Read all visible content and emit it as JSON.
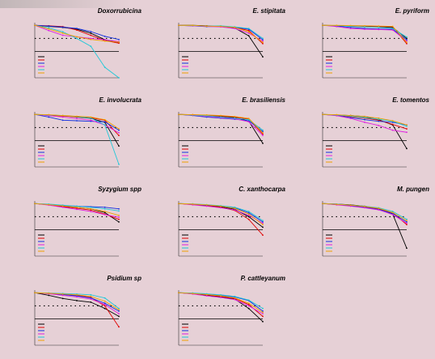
{
  "chart_data": [
    {
      "type": "line",
      "title": "Doxorrubicina",
      "x": [
        1,
        2,
        3,
        4,
        5,
        6,
        7
      ],
      "xlim": [
        1,
        7
      ],
      "ylim": [
        -100,
        110
      ],
      "ref_lines": [
        {
          "value": 50,
          "style": "dotted"
        },
        {
          "value": 0,
          "style": "solid"
        }
      ],
      "series": [
        {
          "color": "#000000",
          "values": [
            100,
            96,
            92,
            85,
            70,
            45,
            35
          ]
        },
        {
          "color": "#e00000",
          "values": [
            100,
            98,
            95,
            82,
            62,
            42,
            32
          ]
        },
        {
          "color": "#1030e0",
          "values": [
            100,
            97,
            93,
            88,
            76,
            58,
            46
          ]
        },
        {
          "color": "#e020e0",
          "values": [
            100,
            80,
            62,
            56,
            50,
            45,
            38
          ]
        },
        {
          "color": "#20c8d8",
          "values": [
            100,
            90,
            75,
            50,
            20,
            -60,
            -100
          ]
        },
        {
          "color": "#f0a000",
          "values": [
            100,
            86,
            70,
            56,
            46,
            40,
            36
          ]
        }
      ]
    },
    {
      "type": "line",
      "title": "E. stipitata",
      "x": [
        1,
        2,
        3,
        4,
        5,
        6,
        7
      ],
      "xlim": [
        1,
        7
      ],
      "ylim": [
        -100,
        110
      ],
      "ref_lines": [
        {
          "value": 50,
          "style": "dotted"
        },
        {
          "value": 0,
          "style": "solid"
        }
      ],
      "series": [
        {
          "color": "#000000",
          "values": [
            100,
            100,
            98,
            95,
            90,
            60,
            -20
          ]
        },
        {
          "color": "#e00000",
          "values": [
            100,
            99,
            97,
            95,
            92,
            80,
            30
          ]
        },
        {
          "color": "#1030e0",
          "values": [
            100,
            98,
            95,
            96,
            93,
            85,
            45
          ]
        },
        {
          "color": "#e020e0",
          "values": [
            100,
            98,
            96,
            94,
            88,
            70,
            40
          ]
        },
        {
          "color": "#20c8d8",
          "values": [
            100,
            99,
            97,
            98,
            94,
            88,
            50
          ]
        },
        {
          "color": "#f0a000",
          "values": [
            100,
            100,
            97,
            96,
            92,
            75,
            35
          ]
        }
      ]
    },
    {
      "type": "line",
      "title": "E. pyriform",
      "x": [
        1,
        2,
        3,
        4,
        5,
        6,
        7
      ],
      "xlim": [
        1,
        7
      ],
      "ylim": [
        -100,
        110
      ],
      "ref_lines": [
        {
          "value": 50,
          "style": "dotted"
        },
        {
          "value": 0,
          "style": "solid"
        }
      ],
      "series": [
        {
          "color": "#000000",
          "values": [
            100,
            98,
            97,
            96,
            95,
            92,
            50
          ]
        },
        {
          "color": "#e00000",
          "values": [
            100,
            99,
            98,
            97,
            96,
            95,
            30
          ]
        },
        {
          "color": "#1030e0",
          "values": [
            100,
            97,
            92,
            88,
            86,
            85,
            45
          ]
        },
        {
          "color": "#e020e0",
          "values": [
            100,
            95,
            88,
            85,
            84,
            82,
            40
          ]
        },
        {
          "color": "#20c8d8",
          "values": [
            100,
            99,
            96,
            94,
            92,
            88,
            55
          ]
        },
        {
          "color": "#f0a000",
          "values": [
            100,
            100,
            99,
            98,
            97,
            96,
            35
          ]
        }
      ]
    },
    {
      "type": "line",
      "title": "E. involucrata",
      "x": [
        1,
        2,
        3,
        4,
        5,
        6,
        7
      ],
      "xlim": [
        1,
        7
      ],
      "ylim": [
        -100,
        110
      ],
      "ref_lines": [
        {
          "value": 50,
          "style": "dotted"
        },
        {
          "value": 0,
          "style": "solid"
        }
      ],
      "series": [
        {
          "color": "#000000",
          "values": [
            100,
            98,
            95,
            90,
            85,
            70,
            -20
          ]
        },
        {
          "color": "#e00000",
          "values": [
            100,
            97,
            94,
            91,
            88,
            78,
            20
          ]
        },
        {
          "color": "#1030e0",
          "values": [
            100,
            90,
            78,
            76,
            74,
            72,
            40
          ]
        },
        {
          "color": "#e020e0",
          "values": [
            100,
            95,
            90,
            84,
            78,
            60,
            30
          ]
        },
        {
          "color": "#20c8d8",
          "values": [
            100,
            98,
            96,
            92,
            86,
            60,
            -90
          ]
        },
        {
          "color": "#f0a000",
          "values": [
            100,
            99,
            96,
            93,
            90,
            80,
            45
          ]
        }
      ]
    },
    {
      "type": "line",
      "title": "E. brasiliensis",
      "x": [
        1,
        2,
        3,
        4,
        5,
        6,
        7
      ],
      "xlim": [
        1,
        7
      ],
      "ylim": [
        -100,
        110
      ],
      "ref_lines": [
        {
          "value": 50,
          "style": "dotted"
        },
        {
          "value": 0,
          "style": "solid"
        }
      ],
      "series": [
        {
          "color": "#000000",
          "values": [
            100,
            98,
            96,
            93,
            88,
            75,
            -10
          ]
        },
        {
          "color": "#e00000",
          "values": [
            100,
            99,
            97,
            94,
            90,
            82,
            25
          ]
        },
        {
          "color": "#1030e0",
          "values": [
            100,
            96,
            90,
            86,
            82,
            76,
            35
          ]
        },
        {
          "color": "#e020e0",
          "values": [
            100,
            97,
            93,
            88,
            84,
            72,
            20
          ]
        },
        {
          "color": "#20c8d8",
          "values": [
            100,
            98,
            95,
            90,
            86,
            80,
            40
          ]
        },
        {
          "color": "#f0a000",
          "values": [
            100,
            99,
            98,
            96,
            92,
            85,
            30
          ]
        }
      ]
    },
    {
      "type": "line",
      "title": "E. tomentos",
      "x": [
        1,
        2,
        3,
        4,
        5,
        6,
        7
      ],
      "xlim": [
        1,
        7
      ],
      "ylim": [
        -100,
        110
      ],
      "ref_lines": [
        {
          "value": 50,
          "style": "dotted"
        },
        {
          "value": 0,
          "style": "solid"
        }
      ],
      "series": [
        {
          "color": "#000000",
          "values": [
            100,
            98,
            96,
            92,
            80,
            60,
            -30
          ]
        },
        {
          "color": "#e00000",
          "values": [
            100,
            97,
            92,
            86,
            78,
            62,
            45
          ]
        },
        {
          "color": "#1030e0",
          "values": [
            100,
            96,
            88,
            80,
            74,
            70,
            60
          ]
        },
        {
          "color": "#e020e0",
          "values": [
            100,
            95,
            85,
            70,
            58,
            40,
            32
          ]
        },
        {
          "color": "#20c8d8",
          "values": [
            100,
            98,
            94,
            88,
            82,
            74,
            55
          ]
        },
        {
          "color": "#f0a000",
          "values": [
            100,
            99,
            96,
            92,
            86,
            76,
            60
          ]
        }
      ]
    },
    {
      "type": "line",
      "title": "Syzygium spp",
      "x": [
        1,
        2,
        3,
        4,
        5,
        6,
        7
      ],
      "xlim": [
        1,
        7
      ],
      "ylim": [
        -100,
        110
      ],
      "ref_lines": [
        {
          "value": 50,
          "style": "dotted"
        },
        {
          "value": 0,
          "style": "solid"
        }
      ],
      "series": [
        {
          "color": "#000000",
          "values": [
            100,
            96,
            90,
            86,
            80,
            66,
            30
          ]
        },
        {
          "color": "#e00000",
          "values": [
            100,
            95,
            88,
            82,
            75,
            60,
            40
          ]
        },
        {
          "color": "#1030e0",
          "values": [
            100,
            97,
            93,
            90,
            88,
            86,
            80
          ]
        },
        {
          "color": "#e020e0",
          "values": [
            100,
            94,
            86,
            78,
            70,
            58,
            48
          ]
        },
        {
          "color": "#20c8d8",
          "values": [
            100,
            98,
            94,
            90,
            86,
            80,
            72
          ]
        },
        {
          "color": "#f0a000",
          "values": [
            100,
            96,
            91,
            86,
            80,
            70,
            55
          ]
        }
      ]
    },
    {
      "type": "line",
      "title": "C. xanthocarpa",
      "x": [
        1,
        2,
        3,
        4,
        5,
        6,
        7
      ],
      "xlim": [
        1,
        7
      ],
      "ylim": [
        -100,
        110
      ],
      "ref_lines": [
        {
          "value": 50,
          "style": "dotted"
        },
        {
          "value": 0,
          "style": "solid"
        }
      ],
      "series": [
        {
          "color": "#000000",
          "values": [
            100,
            97,
            93,
            88,
            78,
            50,
            10
          ]
        },
        {
          "color": "#e00000",
          "values": [
            100,
            96,
            92,
            86,
            74,
            40,
            -20
          ]
        },
        {
          "color": "#1030e0",
          "values": [
            100,
            98,
            94,
            90,
            84,
            65,
            30
          ]
        },
        {
          "color": "#e020e0",
          "values": [
            100,
            95,
            90,
            84,
            76,
            55,
            25
          ]
        },
        {
          "color": "#20c8d8",
          "values": [
            100,
            99,
            96,
            92,
            86,
            70,
            35
          ]
        },
        {
          "color": "#f0a000",
          "values": [
            100,
            98,
            95,
            90,
            82,
            60,
            20
          ]
        }
      ]
    },
    {
      "type": "line",
      "title": "M. pungen",
      "x": [
        1,
        2,
        3,
        4,
        5,
        6,
        7
      ],
      "xlim": [
        1,
        7
      ],
      "ylim": [
        -100,
        110
      ],
      "ref_lines": [
        {
          "value": 50,
          "style": "dotted"
        },
        {
          "value": 0,
          "style": "solid"
        }
      ],
      "series": [
        {
          "color": "#000000",
          "values": [
            100,
            98,
            95,
            90,
            82,
            60,
            -70
          ]
        },
        {
          "color": "#e00000",
          "values": [
            100,
            97,
            93,
            88,
            80,
            65,
            20
          ]
        },
        {
          "color": "#1030e0",
          "values": [
            100,
            96,
            92,
            86,
            78,
            62,
            30
          ]
        },
        {
          "color": "#e020e0",
          "values": [
            100,
            95,
            90,
            84,
            76,
            58,
            25
          ]
        },
        {
          "color": "#20c8d8",
          "values": [
            100,
            98,
            94,
            90,
            84,
            70,
            40
          ]
        },
        {
          "color": "#f0a000",
          "values": [
            100,
            97,
            94,
            89,
            82,
            66,
            35
          ]
        }
      ]
    },
    {
      "type": "line",
      "title": "Psidium sp",
      "x": [
        1,
        2,
        3,
        4,
        5,
        6,
        7
      ],
      "xlim": [
        1,
        7
      ],
      "ylim": [
        -100,
        110
      ],
      "ref_lines": [
        {
          "value": 50,
          "style": "dotted"
        },
        {
          "value": 0,
          "style": "solid"
        }
      ],
      "series": [
        {
          "color": "#000000",
          "values": [
            100,
            90,
            78,
            70,
            64,
            40,
            10
          ]
        },
        {
          "color": "#e00000",
          "values": [
            100,
            98,
            94,
            90,
            82,
            50,
            -30
          ]
        },
        {
          "color": "#1030e0",
          "values": [
            100,
            97,
            93,
            88,
            80,
            60,
            30
          ]
        },
        {
          "color": "#e020e0",
          "values": [
            100,
            96,
            90,
            84,
            76,
            55,
            20
          ]
        },
        {
          "color": "#20c8d8",
          "values": [
            100,
            99,
            97,
            95,
            92,
            80,
            40
          ]
        },
        {
          "color": "#f0a000",
          "values": [
            100,
            98,
            95,
            92,
            86,
            68,
            35
          ]
        }
      ]
    },
    {
      "type": "line",
      "title": "P. cattleyanum",
      "x": [
        1,
        2,
        3,
        4,
        5,
        6,
        7
      ],
      "xlim": [
        1,
        7
      ],
      "ylim": [
        -100,
        110
      ],
      "ref_lines": [
        {
          "value": 50,
          "style": "dotted"
        },
        {
          "value": 0,
          "style": "solid"
        }
      ],
      "series": [
        {
          "color": "#000000",
          "values": [
            100,
            96,
            90,
            84,
            76,
            40,
            -10
          ]
        },
        {
          "color": "#e00000",
          "values": [
            100,
            97,
            92,
            86,
            78,
            55,
            10
          ]
        },
        {
          "color": "#1030e0",
          "values": [
            100,
            98,
            94,
            90,
            84,
            70,
            30
          ]
        },
        {
          "color": "#e020e0",
          "values": [
            100,
            95,
            88,
            82,
            74,
            50,
            20
          ]
        },
        {
          "color": "#20c8d8",
          "values": [
            100,
            99,
            96,
            92,
            86,
            72,
            40
          ]
        },
        {
          "color": "#f0a000",
          "values": [
            100,
            97,
            93,
            88,
            80,
            60,
            25
          ]
        }
      ]
    }
  ]
}
